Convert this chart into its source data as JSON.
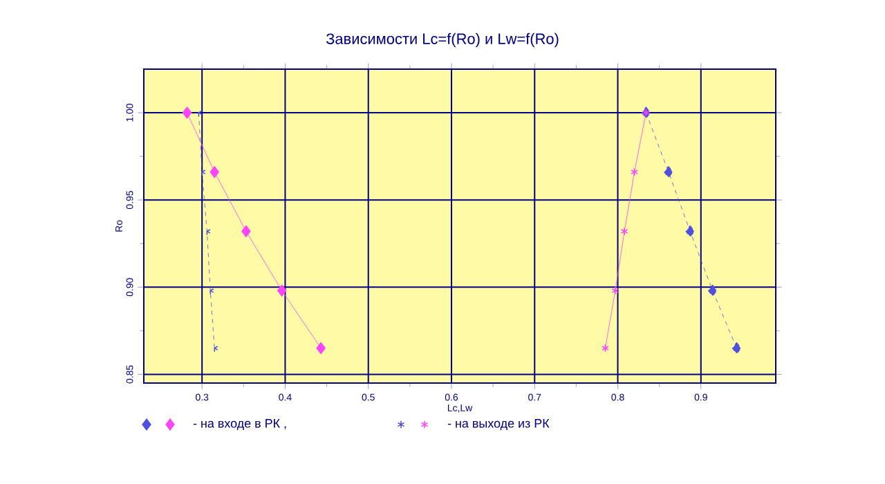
{
  "chart_data": {
    "type": "line",
    "title": "Зависимости Lc=f(Ro) и Lw=f(Ro)",
    "xlabel": "Lc,Lw",
    "ylabel": "Ro",
    "xlim": [
      0.23,
      0.99
    ],
    "ylim": [
      0.845,
      1.025
    ],
    "xticks": [
      0.3,
      0.4,
      0.5,
      0.6,
      0.7,
      0.8,
      0.9
    ],
    "yticks": [
      {
        "value": 0.85,
        "label": "0.85"
      },
      {
        "value": 0.9,
        "label": "0.90"
      },
      {
        "value": 0.95,
        "label": "0.95"
      },
      {
        "value": 1.0,
        "label": "1.00"
      }
    ],
    "grid": true,
    "legend": "bottom",
    "series": [
      {
        "color": "#5050e0",
        "marker": "diamond",
        "line_style": "dashed",
        "x": [
          0.834,
          0.861,
          0.887,
          0.914,
          0.943
        ],
        "values": [
          1.0,
          0.966,
          0.932,
          0.898,
          0.865
        ]
      },
      {
        "name": "- на входе в РК ,",
        "color": "#ff44ff",
        "marker": "diamond",
        "line_style": "solid",
        "x": [
          0.282,
          0.315,
          0.353,
          0.396,
          0.443
        ],
        "values": [
          1.0,
          0.966,
          0.932,
          0.898,
          0.865
        ]
      },
      {
        "color": "#5050e0",
        "marker": "cross",
        "line_style": "dashed",
        "x": [
          0.296,
          0.3,
          0.306,
          0.31,
          0.315
        ],
        "values": [
          1.0,
          0.966,
          0.932,
          0.898,
          0.865
        ]
      },
      {
        "name": "- на выходе из РК",
        "color": "#ff44ff",
        "marker": "cross",
        "line_style": "solid",
        "x": [
          0.834,
          0.82,
          0.808,
          0.797,
          0.785
        ],
        "values": [
          1.0,
          0.966,
          0.932,
          0.898,
          0.865
        ]
      }
    ]
  }
}
